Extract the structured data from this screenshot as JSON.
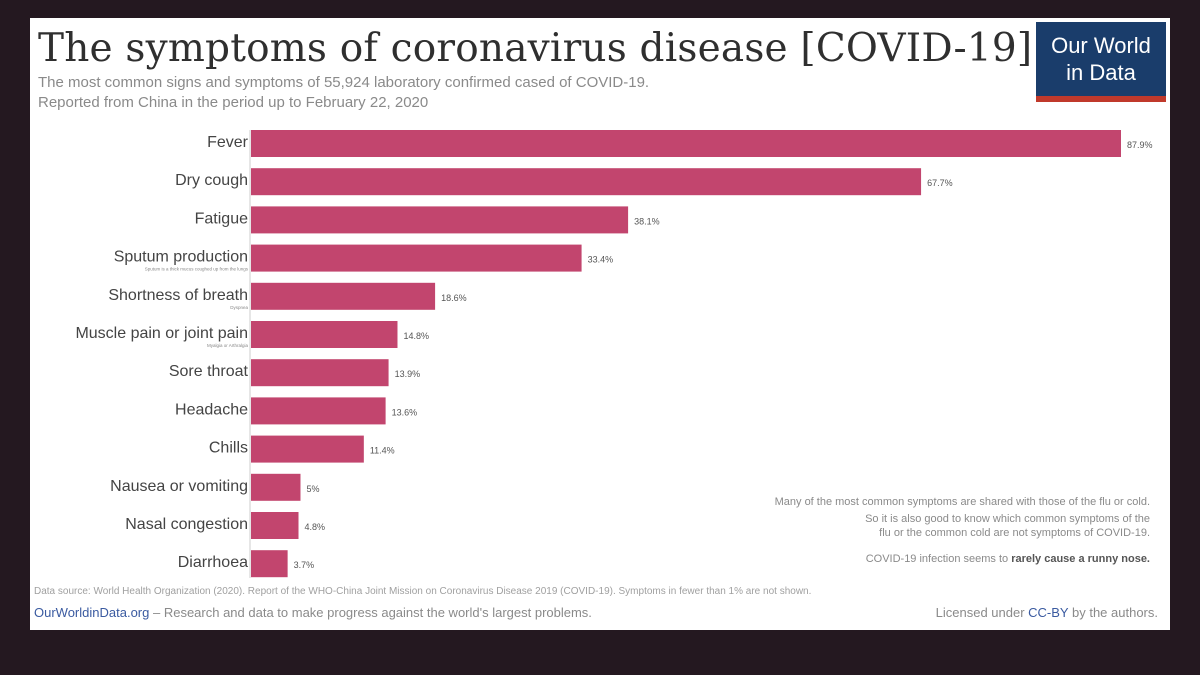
{
  "header": {
    "title": "The symptoms of coronavirus disease [COVID-19]",
    "subtitle_line1": "The most common signs and symptoms of 55,924 laboratory confirmed cased of COVID-19.",
    "subtitle_line2": "Reported from China in the period up to February 22, 2020"
  },
  "logo": {
    "line1": "Our World",
    "line2": "in Data"
  },
  "colors": {
    "bar": "#c2456e",
    "logo_bg": "#1a3d6b",
    "logo_accent": "#c0392b"
  },
  "chart_data": {
    "type": "bar",
    "orientation": "horizontal",
    "title": "The symptoms of coronavirus disease [COVID-19]",
    "categories": [
      "Fever",
      "Dry cough",
      "Fatigue",
      "Sputum production",
      "Shortness of breath",
      "Muscle pain or joint pain",
      "Sore throat",
      "Headache",
      "Chills",
      "Nausea or vomiting",
      "Nasal congestion",
      "Diarrhoea"
    ],
    "values": [
      87.9,
      67.7,
      38.1,
      33.4,
      18.6,
      14.8,
      13.9,
      13.6,
      11.4,
      5,
      4.8,
      3.7
    ],
    "value_labels": [
      "87.9%",
      "67.7%",
      "38.1%",
      "33.4%",
      "18.6%",
      "14.8%",
      "13.9%",
      "13.6%",
      "11.4%",
      "5%",
      "4.8%",
      "3.7%"
    ],
    "sublabels": [
      "",
      "",
      "",
      "Sputum is a thick mucus coughed up from the lungs",
      "Dyspnea",
      "Myalgia or Arthralgia",
      "",
      "",
      "",
      "",
      "",
      ""
    ],
    "xlim": [
      0,
      87.9
    ],
    "grid": false,
    "legend": "none"
  },
  "note": {
    "line1": "Many of the most common symptoms are shared with those of the flu or cold.",
    "line2": "So it is also good to know which common symptoms of the",
    "line3": "flu or the common cold are not symptoms of COVID-19.",
    "line4_prefix": "COVID-19 infection seems to",
    "line4_bold": "rarely cause a runny nose."
  },
  "footer": {
    "source": "Data source: World Health Organization (2020). Report of the WHO-China Joint Mission on Coronavirus Disease 2019 (COVID-19). Symptoms in fewer than 1% are not shown.",
    "site": "OurWorldinData.org",
    "tagline": " – Research and data to make progress against the world's largest problems.",
    "license_prefix": "Licensed under ",
    "license_cc": "CC-BY",
    "license_suffix": " by the authors."
  }
}
